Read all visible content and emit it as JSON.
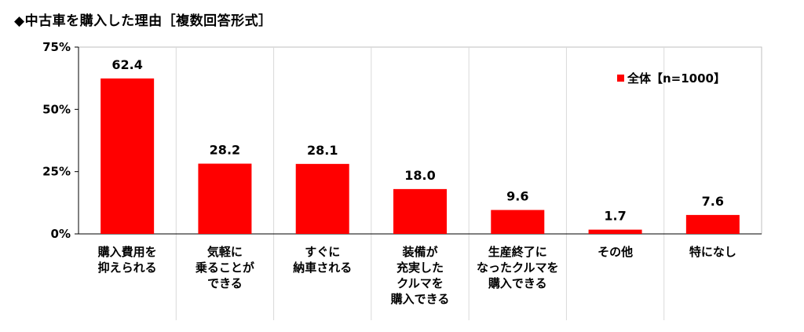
{
  "chart_data": {
    "type": "bar",
    "title": "◆中古車を購入した理由［複数回答形式］",
    "categories": [
      [
        "購入費用を",
        "抑えられる"
      ],
      [
        "気軽に",
        "乗ることが",
        "できる"
      ],
      [
        "すぐに",
        "納車される"
      ],
      [
        "装備が",
        "充実した",
        "クルマを",
        "購入できる"
      ],
      [
        "生産終了に",
        "なったクルマを",
        "購入できる"
      ],
      [
        "その他"
      ],
      [
        "特になし"
      ]
    ],
    "series": [
      {
        "name": "全体【n=1000】",
        "values": [
          62.4,
          28.2,
          28.1,
          18.0,
          9.6,
          1.7,
          7.6
        ],
        "color": "#ff0000"
      }
    ],
    "value_labels": [
      "62.4",
      "28.2",
      "28.1",
      "18.0",
      "9.6",
      "1.7",
      "7.6"
    ],
    "yticks": [
      "0%",
      "25%",
      "50%",
      "75%"
    ],
    "ylim": [
      0,
      75
    ],
    "legend_position": "top-right",
    "grid": false
  }
}
